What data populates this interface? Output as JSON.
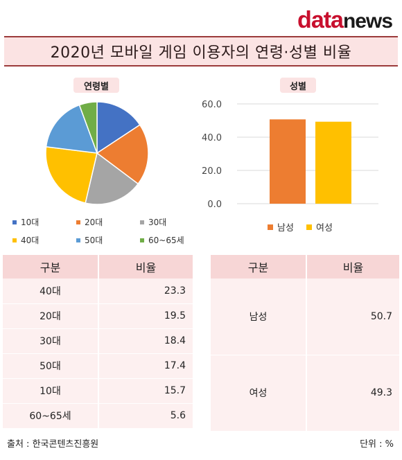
{
  "brand": {
    "data": "data",
    "news": "news"
  },
  "title": "2020년 모바일 게임 이용자의 연령·성별 비율",
  "age_section": {
    "label": "연령별"
  },
  "gender_section": {
    "label": "성별"
  },
  "chart_data": [
    {
      "type": "pie",
      "title": "연령별",
      "categories": [
        "10대",
        "20대",
        "30대",
        "40대",
        "50대",
        "60~65세"
      ],
      "values": [
        15.7,
        19.5,
        18.4,
        23.3,
        17.4,
        5.6
      ],
      "colors": [
        "#4472c4",
        "#ed7d31",
        "#a5a5a5",
        "#ffc000",
        "#5b9bd5",
        "#70ad47"
      ],
      "legend_position": "bottom"
    },
    {
      "type": "bar",
      "title": "성별",
      "categories": [
        "남성",
        "여성"
      ],
      "values": [
        50.7,
        49.3
      ],
      "colors": [
        "#ed7d31",
        "#ffc000"
      ],
      "yticks": [
        "0.0",
        "20.0",
        "40.0",
        "60.0"
      ],
      "ylim": [
        0,
        60
      ],
      "grid": true,
      "legend_position": "bottom"
    }
  ],
  "age_table": {
    "headers": [
      "구분",
      "비율"
    ],
    "rows": [
      [
        "40대",
        "23.3"
      ],
      [
        "20대",
        "19.5"
      ],
      [
        "30대",
        "18.4"
      ],
      [
        "50대",
        "17.4"
      ],
      [
        "10대",
        "15.7"
      ],
      [
        "60~65세",
        "5.6"
      ]
    ]
  },
  "gender_table": {
    "headers": [
      "구분",
      "비율"
    ],
    "rows": [
      [
        "남성",
        "50.7"
      ],
      [
        "여성",
        "49.3"
      ]
    ]
  },
  "footer": {
    "source": "출처 : 한국콘텐츠진흥원",
    "unit": "단위 : %"
  }
}
